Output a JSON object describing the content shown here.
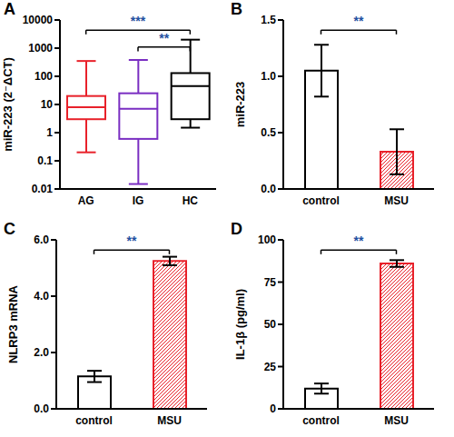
{
  "chart_data": [
    {
      "type": "box",
      "title": "A",
      "ylabel": "miR-223 (2⁻ΔCT)",
      "categories": [
        "AG",
        "IG",
        "HC"
      ],
      "stats": [
        {
          "min": 0.2,
          "q1": 3,
          "median": 8,
          "q3": 20,
          "max": 350
        },
        {
          "min": 0.015,
          "q1": 0.6,
          "median": 7,
          "q3": 25,
          "max": 380
        },
        {
          "min": 1.5,
          "q1": 3,
          "median": 45,
          "q3": 130,
          "max": 2000
        }
      ],
      "colors": [
        "#e8212a",
        "#7a2ec2",
        "#000000"
      ],
      "log": "y",
      "ylim": [
        0.01,
        10000
      ],
      "yticks": [
        0.01,
        0.1,
        1,
        10,
        100,
        1000,
        10000
      ],
      "annotations": [
        {
          "text": "***",
          "from": "AG",
          "to": "HC"
        },
        {
          "text": "**",
          "from": "IG",
          "to": "HC"
        }
      ]
    },
    {
      "type": "bar",
      "title": "B",
      "ylabel": "miR-223",
      "categories": [
        "control",
        "MSU"
      ],
      "values": [
        1.05,
        0.33
      ],
      "errors": [
        0.23,
        0.2
      ],
      "colors": [
        "#000000",
        "#e8212a"
      ],
      "ylim": [
        0,
        1.5
      ],
      "yticks": [
        {
          "value": 0,
          "label": "0.0"
        },
        0.5,
        {
          "value": 1,
          "label": "1.0"
        },
        1.5
      ],
      "annotations": [
        {
          "text": "**",
          "from": "control",
          "to": "MSU"
        }
      ]
    },
    {
      "type": "bar",
      "title": "C",
      "ylabel": "NLRP3 mRNA",
      "categories": [
        "control",
        "MSU"
      ],
      "values": [
        1.15,
        5.25
      ],
      "errors": [
        0.2,
        0.15
      ],
      "colors": [
        "#000000",
        "#e8212a"
      ],
      "ylim": [
        0,
        6
      ],
      "yticks": [
        {
          "value": 0,
          "label": "0.0"
        },
        {
          "value": 2,
          "label": "2.0"
        },
        {
          "value": 4,
          "label": "4.0"
        },
        {
          "value": 6,
          "label": "6.0"
        }
      ],
      "annotations": [
        {
          "text": "**",
          "from": "control",
          "to": "MSU"
        }
      ]
    },
    {
      "type": "bar",
      "title": "D",
      "ylabel": "IL-1β (pg/ml)",
      "categories": [
        "control",
        "MSU"
      ],
      "values": [
        12,
        86
      ],
      "errors": [
        3,
        2
      ],
      "colors": [
        "#000000",
        "#e8212a"
      ],
      "ylim": [
        0,
        100
      ],
      "yticks": [
        0,
        25,
        50,
        75,
        100
      ],
      "annotations": [
        {
          "text": "**",
          "from": "control",
          "to": "MSU"
        }
      ]
    }
  ]
}
